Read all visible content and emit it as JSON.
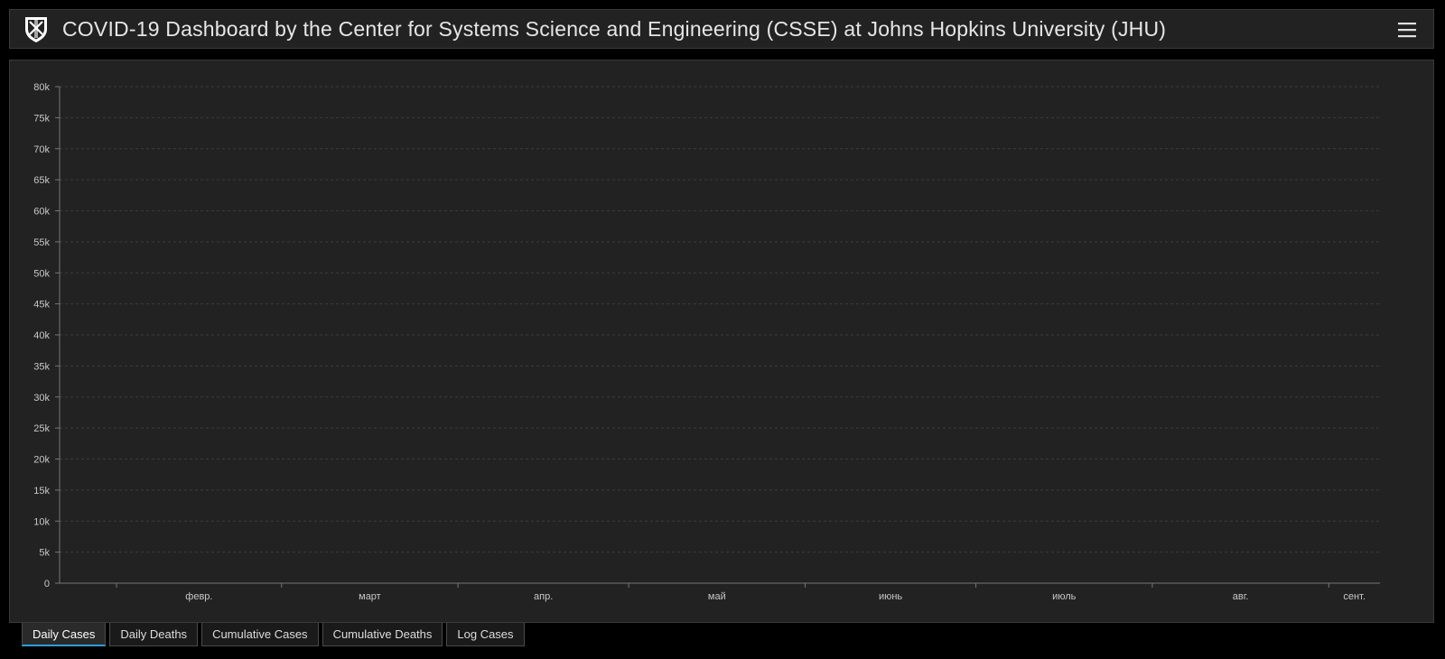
{
  "header": {
    "title": "COVID-19 Dashboard by the Center for Systems Science and Engineering (CSSE) at Johns Hopkins University (JHU)"
  },
  "tabs": [
    {
      "label": "Daily Cases",
      "active": true
    },
    {
      "label": "Daily Deaths",
      "active": false
    },
    {
      "label": "Cumulative Cases",
      "active": false
    },
    {
      "label": "Cumulative Deaths",
      "active": false
    },
    {
      "label": "Log Cases",
      "active": false
    }
  ],
  "colors": {
    "bar": "#FFAA00",
    "background": "#222222",
    "grid": "#3c3c3c",
    "text": "#c8c8c8"
  },
  "chart_data": {
    "type": "bar",
    "title": "",
    "xlabel": "",
    "ylabel": "",
    "x_start_date": "2020-01-22",
    "ylim": [
      0,
      80000
    ],
    "ytick_labels": [
      "0",
      "5k",
      "10k",
      "15k",
      "20k",
      "25k",
      "30k",
      "35k",
      "40k",
      "45k",
      "50k",
      "55k",
      "60k",
      "65k",
      "70k",
      "75k",
      "80k"
    ],
    "month_labels": [
      {
        "date": "2020-02-01",
        "label": "февр."
      },
      {
        "date": "2020-03-01",
        "label": "март"
      },
      {
        "date": "2020-04-01",
        "label": "апр."
      },
      {
        "date": "2020-05-01",
        "label": "май"
      },
      {
        "date": "2020-06-01",
        "label": "июнь"
      },
      {
        "date": "2020-07-01",
        "label": "июль"
      },
      {
        "date": "2020-08-01",
        "label": "авг."
      },
      {
        "date": "2020-09-01",
        "label": "сент."
      }
    ],
    "grid": true,
    "legend": "none",
    "values": [
      0,
      0,
      0,
      0,
      0,
      0,
      0,
      0,
      0,
      0,
      0,
      0,
      0,
      0,
      0,
      0,
      0,
      0,
      0,
      0,
      0,
      0,
      0,
      0,
      0,
      0,
      0,
      0,
      0,
      0,
      0,
      0,
      0,
      0,
      0,
      0,
      0,
      0,
      0,
      0,
      0,
      0,
      0,
      0,
      0,
      0,
      0,
      0,
      0,
      0,
      0,
      0,
      0,
      0,
      0,
      0,
      0,
      0,
      0,
      0,
      0,
      0,
      0,
      0,
      0,
      0,
      0,
      0,
      0,
      0,
      0,
      0,
      0,
      0,
      0,
      0,
      0,
      0,
      0,
      0,
      0,
      0,
      0,
      0,
      0,
      0,
      0,
      0,
      0,
      0,
      0,
      0,
      0,
      0,
      0,
      0,
      0,
      0,
      0,
      0,
      0,
      0,
      0,
      0,
      0,
      0,
      0,
      0,
      0,
      0,
      0,
      0,
      0,
      0,
      0,
      0,
      0,
      0,
      0,
      0,
      0,
      0,
      0,
      0,
      0,
      0,
      0,
      0,
      0,
      0,
      0,
      0,
      0,
      0,
      0,
      0,
      0,
      0,
      0,
      0,
      0,
      0,
      0,
      0,
      0,
      0,
      0,
      0,
      0,
      0,
      0,
      0,
      0,
      0,
      0,
      0,
      0,
      0,
      0,
      0,
      0,
      0,
      0,
      0,
      0,
      0,
      0,
      0,
      0,
      0,
      0,
      0,
      0,
      0,
      0,
      0,
      0,
      0,
      0,
      0,
      0,
      0,
      0,
      0,
      0,
      0,
      0,
      0,
      0,
      0,
      0,
      0,
      0,
      0,
      0,
      0,
      0,
      0,
      0,
      0,
      0,
      0,
      0,
      0,
      0,
      0,
      0,
      0,
      0,
      0,
      0,
      0,
      0,
      0,
      0,
      0,
      0,
      0,
      0,
      0,
      0,
      0,
      0,
      0,
      0,
      0,
      0,
      0,
      0,
      0,
      0,
      0
    ]
  }
}
